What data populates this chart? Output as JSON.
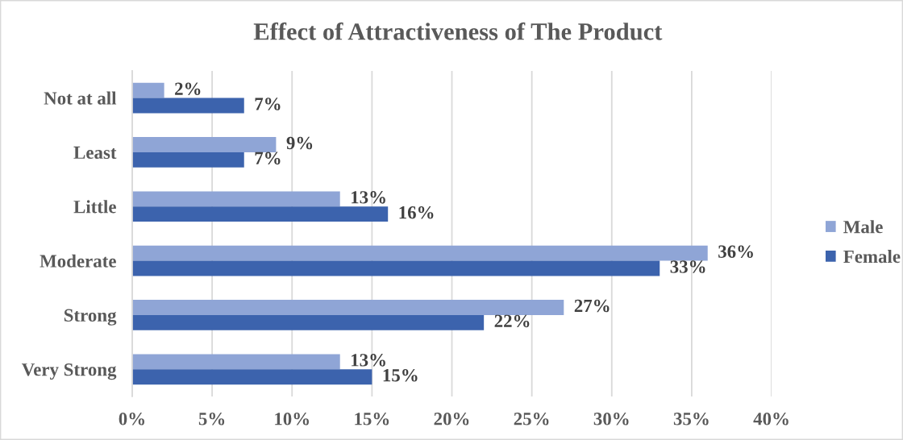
{
  "chart_data": {
    "type": "bar",
    "orientation": "horizontal",
    "title": "Effect of Attractiveness of The Product",
    "categories": [
      "Not at all",
      "Least",
      "Little",
      "Moderate",
      "Strong",
      "Very Strong"
    ],
    "series": [
      {
        "name": "Male",
        "color": "#8fa5d6",
        "values": [
          2,
          9,
          13,
          36,
          27,
          13
        ],
        "value_labels": [
          "2%",
          "9%",
          "13%",
          "36%",
          "27%",
          "13%"
        ]
      },
      {
        "name": "Female",
        "color": "#3c63ad",
        "values": [
          7,
          7,
          16,
          33,
          22,
          15
        ],
        "value_labels": [
          "7%",
          "7%",
          "16%",
          "33%",
          "22%",
          "15%"
        ]
      }
    ],
    "xlim": [
      0,
      40
    ],
    "xticks": [
      {
        "value": 0,
        "label": "0%"
      },
      {
        "value": 5,
        "label": "5%"
      },
      {
        "value": 10,
        "label": "10%"
      },
      {
        "value": 15,
        "label": "15%"
      },
      {
        "value": 20,
        "label": "20%"
      },
      {
        "value": 25,
        "label": "25%"
      },
      {
        "value": 30,
        "label": "30%"
      },
      {
        "value": 35,
        "label": "35%"
      },
      {
        "value": 40,
        "label": "40%"
      }
    ],
    "grid": "x",
    "legend": "right"
  }
}
